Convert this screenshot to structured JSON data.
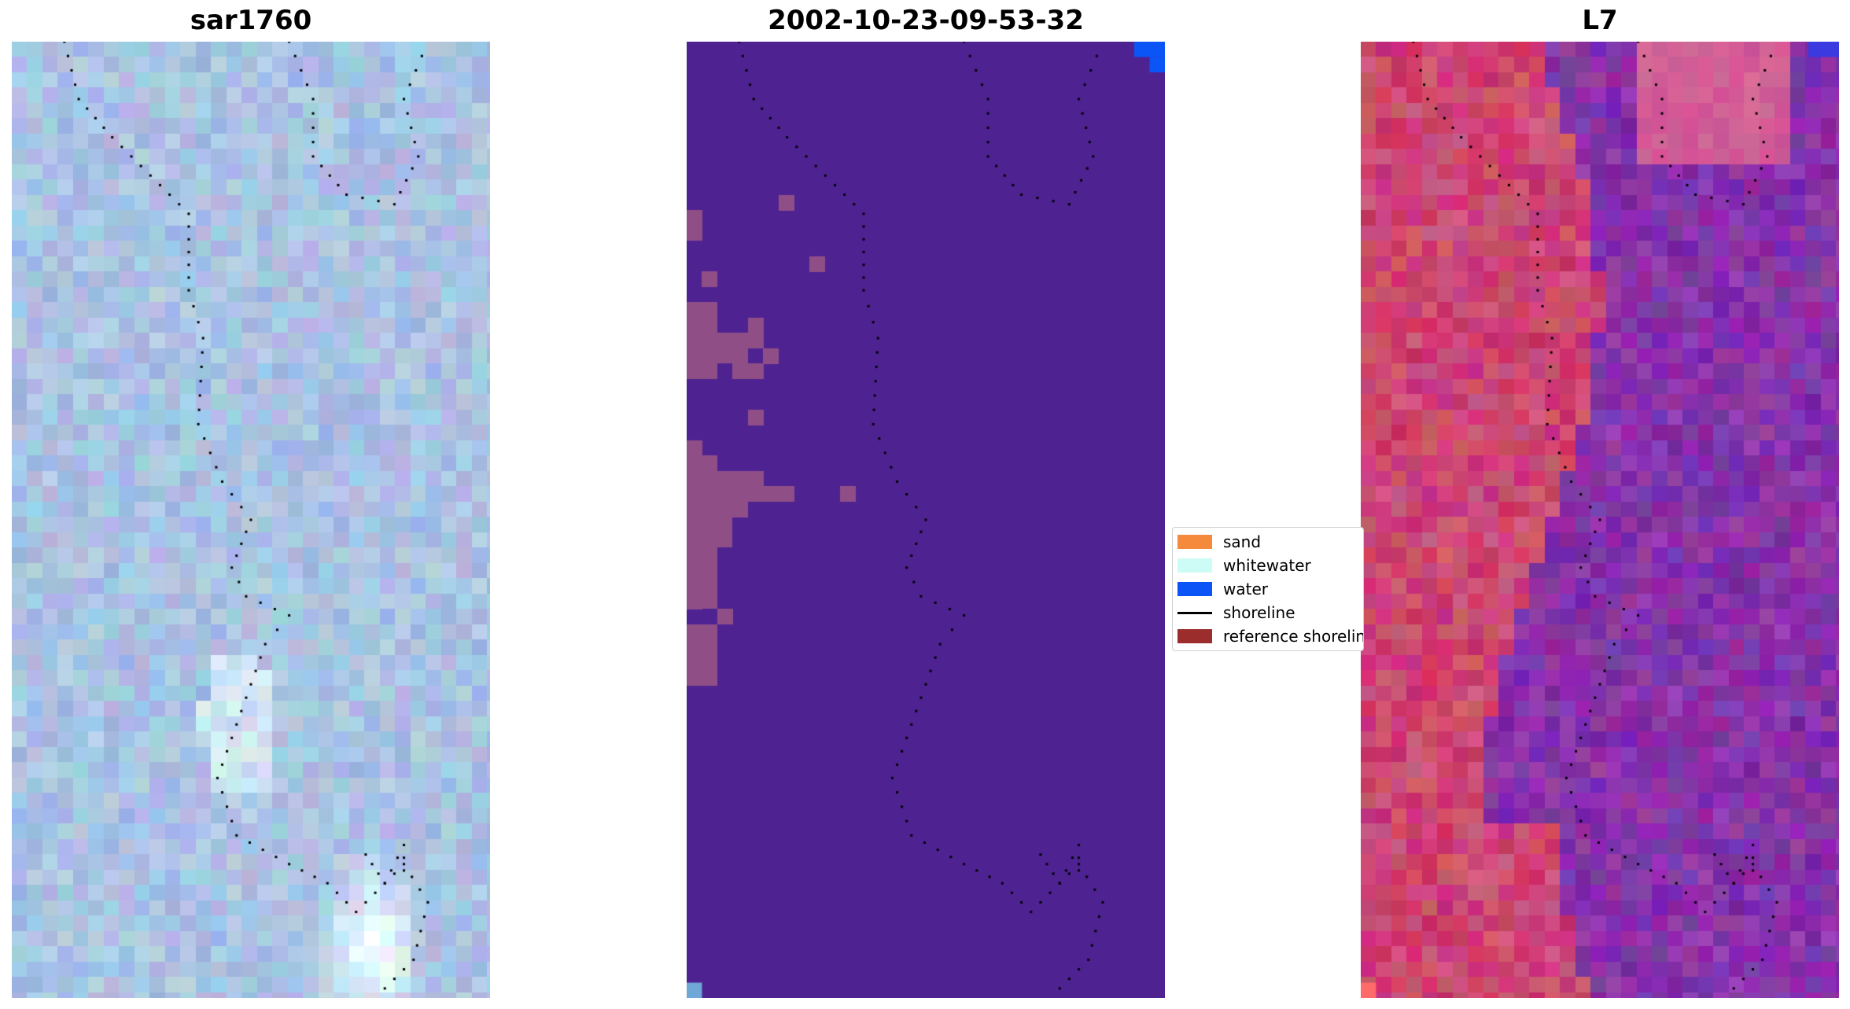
{
  "panels": [
    {
      "title": "sar1760",
      "style": "rgb"
    },
    {
      "title": "2002-10-23-09-53-32",
      "style": "classified"
    },
    {
      "title": "L7",
      "style": "false-color"
    }
  ],
  "legend": {
    "items": [
      {
        "label": "sand",
        "color": "#f58a3c",
        "kind": "patch"
      },
      {
        "label": "whitewater",
        "color": "#cdfcf6",
        "kind": "patch"
      },
      {
        "label": "water",
        "color": "#0b55f7",
        "kind": "patch"
      },
      {
        "label": "shoreline",
        "color": "#000000",
        "kind": "line"
      },
      {
        "label": "reference shoreline",
        "color": "#9b2d2d",
        "kind": "patch"
      }
    ]
  },
  "colors": {
    "classified_background": "#4f2292",
    "classified_sand_overlay": "#8f4f86",
    "classified_water": "#0b55f7",
    "shoreline_dots": "#000000"
  }
}
